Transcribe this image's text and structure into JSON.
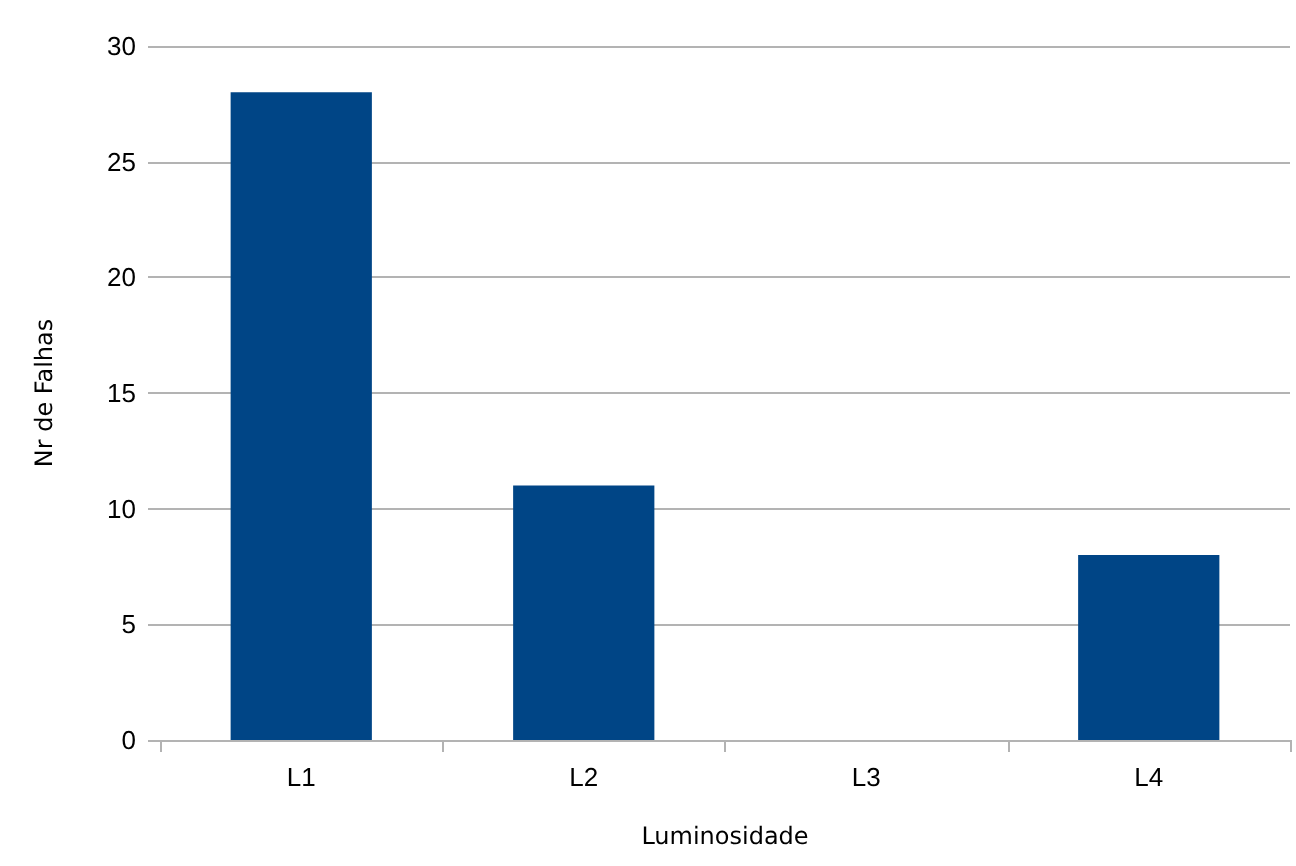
{
  "chart_data": {
    "type": "bar",
    "xlabel": "Luminosidade",
    "ylabel": "Nr de Falhas",
    "categories": [
      "L1",
      "L2",
      "L3",
      "L4"
    ],
    "values": [
      28,
      11,
      0,
      8
    ],
    "color": "#004586",
    "ylim": [
      0,
      30
    ],
    "yticks": [
      0,
      5,
      10,
      15,
      20,
      25,
      30
    ],
    "grid": "y"
  }
}
